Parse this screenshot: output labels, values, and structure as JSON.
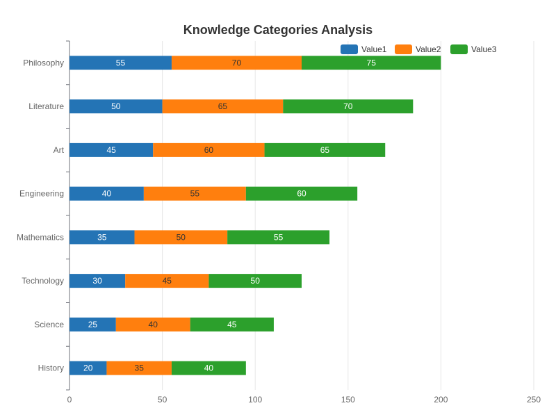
{
  "chart_data": {
    "type": "bar",
    "orientation": "horizontal",
    "stacked": true,
    "title": "Knowledge Categories Analysis",
    "categories": [
      "History",
      "Science",
      "Technology",
      "Mathematics",
      "Engineering",
      "Art",
      "Literature",
      "Philosophy"
    ],
    "series": [
      {
        "name": "Value1",
        "color": "#2474b5",
        "label_color": "#ffffff",
        "values": [
          20,
          25,
          30,
          35,
          40,
          45,
          50,
          55
        ]
      },
      {
        "name": "Value2",
        "color": "#ff7f0e",
        "label_color": "#333333",
        "values": [
          35,
          40,
          45,
          50,
          55,
          60,
          65,
          70
        ]
      },
      {
        "name": "Value3",
        "color": "#2ca02c",
        "label_color": "#ffffff",
        "values": [
          40,
          45,
          50,
          55,
          60,
          65,
          70,
          75
        ]
      }
    ],
    "xlim": [
      0,
      250
    ],
    "xticks": [
      0,
      50,
      100,
      150,
      200,
      250
    ],
    "xlabel": "",
    "ylabel": "",
    "grid": true,
    "legend_position": "top-right"
  }
}
